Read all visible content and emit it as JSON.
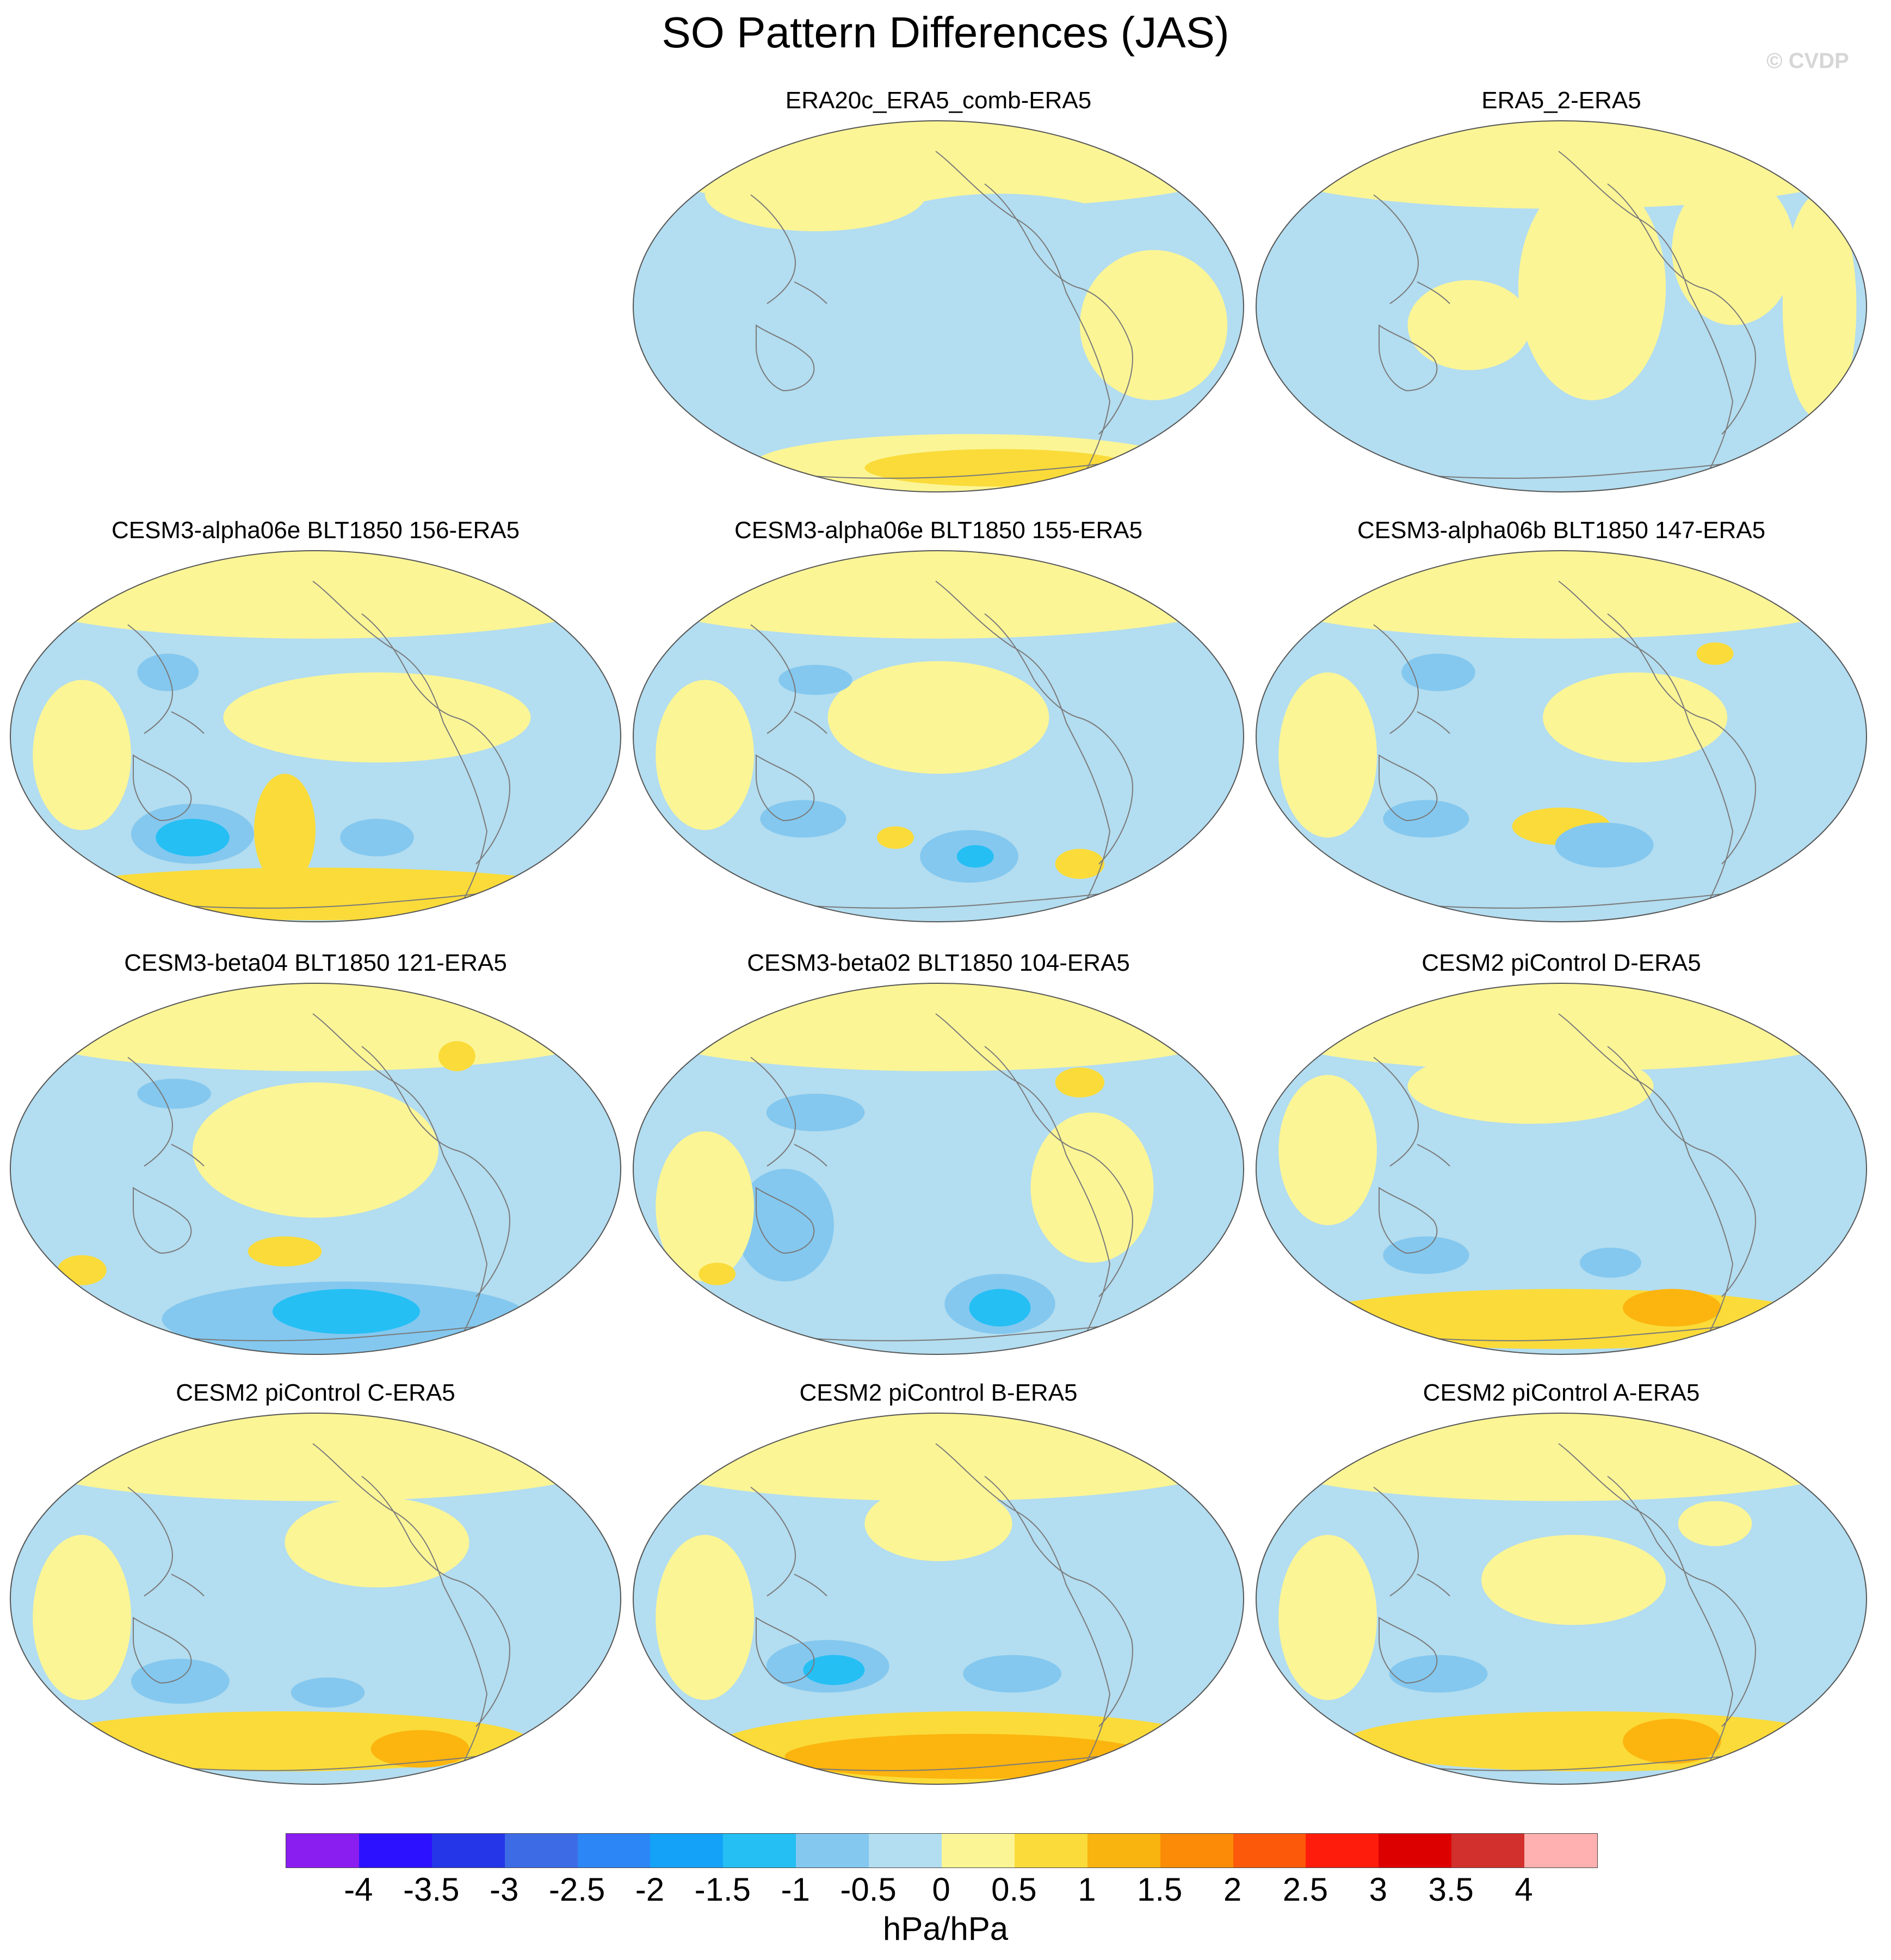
{
  "title": "SO Pattern Differences (JAS)",
  "watermark": "© CVDP",
  "colors": {
    "ocean_neg": "#b3ddf0",
    "ocean_pos": "#fbf596",
    "coast": "#7a7a7a",
    "outline": "#555555"
  },
  "colorbar": {
    "colors": [
      "#8a1ef0",
      "#2b11ff",
      "#2436e8",
      "#3d6be6",
      "#2c86f5",
      "#14a2f8",
      "#25bff4",
      "#84c8ef",
      "#b3ddf0",
      "#fbf596",
      "#fadb39",
      "#f9b40f",
      "#fc8c07",
      "#fc5a0a",
      "#fe1c0c",
      "#dd0000",
      "#d1302c",
      "#ffb0b0"
    ],
    "ticks": [
      "-4",
      "-3.5",
      "-3",
      "-2.5",
      "-2",
      "-1.5",
      "-1",
      "-0.5",
      "0",
      "0.5",
      "1",
      "1.5",
      "2",
      "2.5",
      "3",
      "3.5",
      "4"
    ],
    "unit": "hPa/hPa"
  },
  "panels": [
    {
      "title": "ERA20c_ERA5_comb-ERA5",
      "blobs": [
        [
          0.55,
          0.92,
          0.35,
          0.08,
          "#fbf596"
        ],
        [
          0.6,
          0.93,
          0.22,
          0.05,
          "#fadb39"
        ],
        [
          0.6,
          0.4,
          0.28,
          0.2,
          "#b3ddf0"
        ],
        [
          0.3,
          0.2,
          0.18,
          0.1,
          "#fbf596"
        ],
        [
          0.85,
          0.55,
          0.12,
          0.2,
          "#fbf596"
        ]
      ]
    },
    {
      "title": "ERA5_2-ERA5",
      "blobs": [
        [
          0.55,
          0.45,
          0.12,
          0.3,
          "#fbf596"
        ],
        [
          0.78,
          0.35,
          0.1,
          0.2,
          "#fbf596"
        ],
        [
          0.35,
          0.55,
          0.1,
          0.12,
          "#fbf596"
        ],
        [
          0.92,
          0.5,
          0.06,
          0.3,
          "#fbf596"
        ]
      ]
    },
    {
      "title": "CESM3-alpha06e BLT1850 156-ERA5",
      "blobs": [
        [
          0.5,
          0.92,
          0.45,
          0.07,
          "#fadb39"
        ],
        [
          0.45,
          0.75,
          0.05,
          0.15,
          "#fadb39"
        ],
        [
          0.3,
          0.76,
          0.1,
          0.08,
          "#84c8ef"
        ],
        [
          0.3,
          0.77,
          0.06,
          0.05,
          "#25bff4"
        ],
        [
          0.26,
          0.33,
          0.05,
          0.05,
          "#84c8ef"
        ],
        [
          0.6,
          0.45,
          0.25,
          0.12,
          "#fbf596"
        ],
        [
          0.12,
          0.55,
          0.08,
          0.2,
          "#fbf596"
        ],
        [
          0.8,
          0.92,
          0.08,
          0.05,
          "#fadb39"
        ],
        [
          0.6,
          0.77,
          0.06,
          0.05,
          "#84c8ef"
        ]
      ]
    },
    {
      "title": "CESM3-alpha06e BLT1850 155-ERA5",
      "blobs": [
        [
          0.55,
          0.82,
          0.08,
          0.07,
          "#84c8ef"
        ],
        [
          0.56,
          0.82,
          0.03,
          0.03,
          "#25bff4"
        ],
        [
          0.28,
          0.72,
          0.07,
          0.05,
          "#84c8ef"
        ],
        [
          0.5,
          0.45,
          0.18,
          0.15,
          "#fbf596"
        ],
        [
          0.12,
          0.55,
          0.08,
          0.2,
          "#fbf596"
        ],
        [
          0.43,
          0.77,
          0.03,
          0.03,
          "#fadb39"
        ],
        [
          0.73,
          0.84,
          0.04,
          0.04,
          "#fadb39"
        ],
        [
          0.3,
          0.35,
          0.06,
          0.04,
          "#84c8ef"
        ]
      ]
    },
    {
      "title": "CESM3-alpha06b BLT1850 147-ERA5",
      "blobs": [
        [
          0.5,
          0.74,
          0.08,
          0.05,
          "#fadb39"
        ],
        [
          0.57,
          0.79,
          0.08,
          0.06,
          "#84c8ef"
        ],
        [
          0.28,
          0.72,
          0.07,
          0.05,
          "#84c8ef"
        ],
        [
          0.3,
          0.33,
          0.06,
          0.05,
          "#84c8ef"
        ],
        [
          0.12,
          0.55,
          0.08,
          0.22,
          "#fbf596"
        ],
        [
          0.62,
          0.45,
          0.15,
          0.12,
          "#fbf596"
        ],
        [
          0.75,
          0.28,
          0.03,
          0.03,
          "#fadb39"
        ]
      ]
    },
    {
      "title": "CESM3-beta04 BLT1850 121-ERA5",
      "blobs": [
        [
          0.55,
          0.9,
          0.3,
          0.1,
          "#84c8ef"
        ],
        [
          0.55,
          0.88,
          0.12,
          0.06,
          "#25bff4"
        ],
        [
          0.45,
          0.72,
          0.06,
          0.04,
          "#fadb39"
        ],
        [
          0.12,
          0.77,
          0.04,
          0.04,
          "#fadb39"
        ],
        [
          0.5,
          0.45,
          0.2,
          0.18,
          "#fbf596"
        ],
        [
          0.27,
          0.3,
          0.06,
          0.04,
          "#84c8ef"
        ],
        [
          0.73,
          0.2,
          0.03,
          0.04,
          "#fadb39"
        ]
      ]
    },
    {
      "title": "CESM3-beta02 BLT1850 104-ERA5",
      "blobs": [
        [
          0.6,
          0.86,
          0.09,
          0.08,
          "#84c8ef"
        ],
        [
          0.6,
          0.87,
          0.05,
          0.05,
          "#25bff4"
        ],
        [
          0.25,
          0.65,
          0.08,
          0.15,
          "#84c8ef"
        ],
        [
          0.3,
          0.35,
          0.08,
          0.05,
          "#84c8ef"
        ],
        [
          0.12,
          0.6,
          0.08,
          0.2,
          "#fbf596"
        ],
        [
          0.75,
          0.55,
          0.1,
          0.2,
          "#fbf596"
        ],
        [
          0.73,
          0.27,
          0.04,
          0.04,
          "#fadb39"
        ],
        [
          0.14,
          0.78,
          0.03,
          0.03,
          "#fadb39"
        ]
      ]
    },
    {
      "title": "CESM2 piControl D-ERA5",
      "blobs": [
        [
          0.5,
          0.9,
          0.42,
          0.08,
          "#fadb39"
        ],
        [
          0.68,
          0.87,
          0.08,
          0.05,
          "#fcb40f"
        ],
        [
          0.28,
          0.73,
          0.07,
          0.05,
          "#84c8ef"
        ],
        [
          0.58,
          0.75,
          0.05,
          0.04,
          "#84c8ef"
        ],
        [
          0.45,
          0.28,
          0.2,
          0.1,
          "#fbf596"
        ],
        [
          0.12,
          0.45,
          0.08,
          0.2,
          "#fbf596"
        ]
      ]
    },
    {
      "title": "CESM2 piControl C-ERA5",
      "blobs": [
        [
          0.45,
          0.88,
          0.4,
          0.08,
          "#fadb39"
        ],
        [
          0.67,
          0.9,
          0.08,
          0.05,
          "#fcb40f"
        ],
        [
          0.28,
          0.72,
          0.08,
          0.06,
          "#84c8ef"
        ],
        [
          0.52,
          0.75,
          0.06,
          0.04,
          "#84c8ef"
        ],
        [
          0.12,
          0.55,
          0.08,
          0.22,
          "#fbf596"
        ],
        [
          0.6,
          0.35,
          0.15,
          0.12,
          "#fbf596"
        ]
      ]
    },
    {
      "title": "CESM2 piControl B-ERA5",
      "blobs": [
        [
          0.55,
          0.9,
          0.42,
          0.1,
          "#fadb39"
        ],
        [
          0.55,
          0.92,
          0.3,
          0.06,
          "#fcb40f"
        ],
        [
          0.32,
          0.68,
          0.1,
          0.07,
          "#84c8ef"
        ],
        [
          0.33,
          0.69,
          0.05,
          0.04,
          "#25bff4"
        ],
        [
          0.62,
          0.7,
          0.08,
          0.05,
          "#84c8ef"
        ],
        [
          0.12,
          0.55,
          0.08,
          0.22,
          "#fbf596"
        ],
        [
          0.5,
          0.3,
          0.12,
          0.1,
          "#fbf596"
        ]
      ]
    },
    {
      "title": "CESM2 piControl A-ERA5",
      "blobs": [
        [
          0.55,
          0.88,
          0.4,
          0.08,
          "#fadb39"
        ],
        [
          0.68,
          0.88,
          0.08,
          0.06,
          "#fcb40f"
        ],
        [
          0.3,
          0.7,
          0.08,
          0.05,
          "#84c8ef"
        ],
        [
          0.12,
          0.55,
          0.08,
          0.22,
          "#fbf596"
        ],
        [
          0.52,
          0.45,
          0.15,
          0.12,
          "#fbf596"
        ],
        [
          0.75,
          0.3,
          0.06,
          0.06,
          "#fbf596"
        ]
      ]
    }
  ]
}
